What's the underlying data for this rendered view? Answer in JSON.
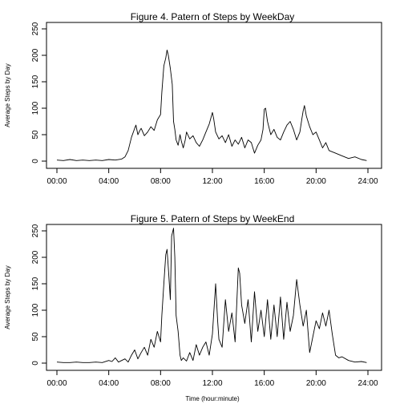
{
  "chart_data": [
    {
      "type": "line",
      "title": "Figure 4. Patern of Steps by WeekDay",
      "ylabel": "Average Steps by Day",
      "xlabel": "",
      "x_ticks": [
        "00:00",
        "04:00",
        "08:00",
        "12:00",
        "16:00",
        "20:00",
        "24:00"
      ],
      "y_ticks": [
        "0",
        "50",
        "100",
        "150",
        "200",
        "250"
      ],
      "xlim": [
        0,
        24
      ],
      "ylim": [
        0,
        250
      ],
      "grid": false,
      "series": [
        {
          "x": [
            0.0,
            0.5,
            1.0,
            1.5,
            2.0,
            2.5,
            3.0,
            3.5,
            4.0,
            4.5,
            5.0,
            5.25,
            5.5,
            5.75,
            6.0,
            6.1,
            6.25,
            6.4,
            6.5,
            6.75,
            7.0,
            7.25,
            7.5,
            7.75,
            8.0,
            8.1,
            8.25,
            8.4,
            8.5,
            8.6,
            8.75,
            8.9,
            9.0,
            9.1,
            9.2,
            9.35,
            9.5,
            9.6,
            9.75,
            9.9,
            10.0,
            10.25,
            10.5,
            10.75,
            11.0,
            11.25,
            11.5,
            11.75,
            12.0,
            12.1,
            12.25,
            12.5,
            12.75,
            13.0,
            13.25,
            13.5,
            13.75,
            14.0,
            14.25,
            14.5,
            14.75,
            15.0,
            15.25,
            15.5,
            15.75,
            15.9,
            16.0,
            16.1,
            16.25,
            16.5,
            16.75,
            17.0,
            17.25,
            17.5,
            17.75,
            18.0,
            18.25,
            18.5,
            18.75,
            18.9,
            19.0,
            19.1,
            19.25,
            19.5,
            19.75,
            20.0,
            20.25,
            20.5,
            20.75,
            21.0,
            21.5,
            22.0,
            22.5,
            23.0,
            23.5,
            23.9
          ],
          "y": [
            2,
            1,
            3,
            1,
            2,
            1,
            2,
            1,
            3,
            2,
            4,
            8,
            20,
            45,
            62,
            68,
            50,
            58,
            62,
            48,
            55,
            65,
            58,
            78,
            88,
            130,
            180,
            195,
            210,
            200,
            175,
            145,
            75,
            60,
            40,
            30,
            50,
            38,
            25,
            40,
            55,
            42,
            48,
            35,
            28,
            40,
            55,
            70,
            92,
            80,
            55,
            42,
            48,
            35,
            50,
            28,
            40,
            32,
            45,
            25,
            40,
            35,
            15,
            30,
            40,
            60,
            98,
            100,
            75,
            50,
            60,
            45,
            40,
            55,
            68,
            75,
            60,
            40,
            55,
            80,
            95,
            105,
            85,
            65,
            50,
            55,
            40,
            25,
            35,
            20,
            15,
            10,
            5,
            8,
            3,
            1
          ]
        }
      ]
    },
    {
      "type": "line",
      "title": "Figure 5. Patern of Steps by WeekEnd",
      "ylabel": "Average Steps by Day",
      "xlabel": "Time (hour:minute)",
      "x_ticks": [
        "00:00",
        "04:00",
        "08:00",
        "12:00",
        "16:00",
        "20:00",
        "24:00"
      ],
      "y_ticks": [
        "0",
        "50",
        "100",
        "150",
        "200",
        "250"
      ],
      "xlim": [
        0,
        24
      ],
      "ylim": [
        0,
        250
      ],
      "grid": false,
      "series": [
        {
          "x": [
            0.0,
            0.5,
            1.0,
            1.5,
            2.0,
            2.5,
            3.0,
            3.5,
            4.0,
            4.25,
            4.5,
            4.75,
            5.0,
            5.25,
            5.5,
            5.75,
            6.0,
            6.25,
            6.5,
            6.75,
            7.0,
            7.25,
            7.5,
            7.75,
            8.0,
            8.1,
            8.25,
            8.4,
            8.5,
            8.6,
            8.75,
            8.85,
            9.0,
            9.1,
            9.2,
            9.35,
            9.5,
            9.6,
            9.75,
            10.0,
            10.25,
            10.5,
            10.75,
            11.0,
            11.25,
            11.5,
            11.75,
            12.0,
            12.25,
            12.4,
            12.5,
            12.75,
            13.0,
            13.25,
            13.5,
            13.75,
            14.0,
            14.1,
            14.25,
            14.5,
            14.75,
            15.0,
            15.25,
            15.5,
            15.75,
            16.0,
            16.25,
            16.5,
            16.75,
            17.0,
            17.25,
            17.5,
            17.75,
            18.0,
            18.25,
            18.5,
            18.75,
            19.0,
            19.25,
            19.5,
            19.75,
            20.0,
            20.25,
            20.5,
            20.75,
            21.0,
            21.25,
            21.5,
            21.75,
            22.0,
            22.5,
            23.0,
            23.5,
            23.9
          ],
          "y": [
            2,
            1,
            1,
            2,
            1,
            1,
            2,
            1,
            5,
            3,
            10,
            2,
            5,
            8,
            2,
            15,
            25,
            8,
            20,
            30,
            15,
            45,
            30,
            60,
            40,
            90,
            150,
            205,
            215,
            180,
            120,
            240,
            255,
            200,
            90,
            60,
            15,
            5,
            10,
            4,
            20,
            5,
            35,
            15,
            30,
            40,
            15,
            55,
            150,
            80,
            45,
            30,
            120,
            60,
            95,
            40,
            180,
            170,
            110,
            75,
            120,
            40,
            135,
            60,
            100,
            50,
            120,
            45,
            110,
            50,
            125,
            45,
            115,
            60,
            90,
            158,
            110,
            70,
            100,
            20,
            50,
            80,
            65,
            95,
            70,
            100,
            55,
            15,
            10,
            12,
            5,
            2,
            3,
            1
          ]
        }
      ]
    }
  ]
}
